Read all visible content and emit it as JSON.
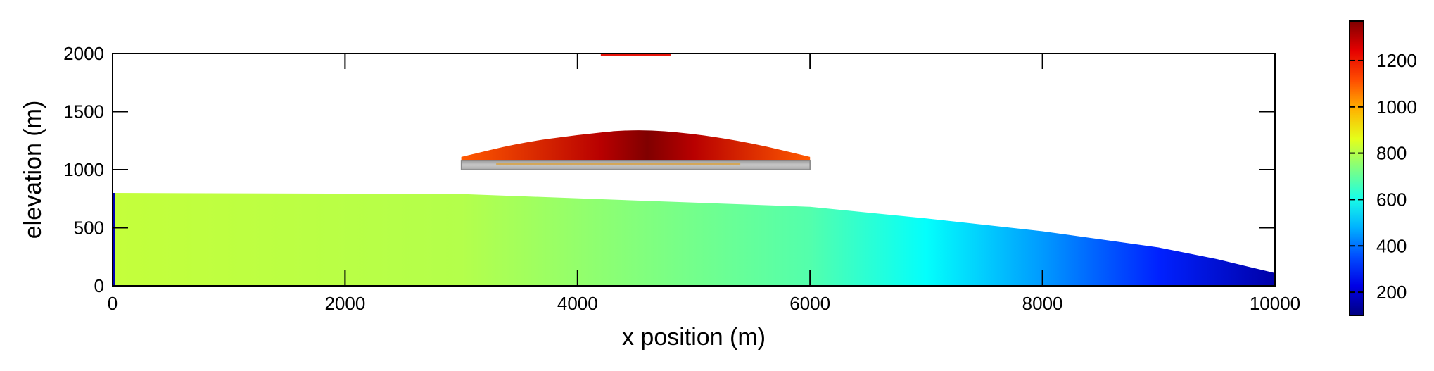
{
  "chart_data": {
    "type": "heatmap",
    "title": "",
    "xlabel": "x position (m)",
    "ylabel": "elevation (m)",
    "xlim": [
      0,
      10000
    ],
    "ylim": [
      0,
      2000
    ],
    "x_ticks": [
      0,
      2000,
      4000,
      6000,
      8000,
      10000
    ],
    "y_ticks": [
      0,
      500,
      1000,
      1500,
      2000
    ],
    "x_tick_labels": [
      "0",
      "2000",
      "4000",
      "6000",
      "8000",
      "10000"
    ],
    "y_tick_labels": [
      "0",
      "500",
      "1000",
      "1500",
      "2000"
    ],
    "grid": false,
    "colormap": "jet",
    "colorbar": {
      "range": [
        100,
        1370
      ],
      "ticks": [
        200,
        400,
        600,
        800,
        1000,
        1200
      ],
      "tick_labels": [
        "200",
        "400",
        "600",
        "800",
        "1000",
        "1200"
      ]
    },
    "regions": [
      {
        "region": "lower-body",
        "x_range": [
          0,
          10000
        ],
        "surface_x": [
          0,
          3000,
          6000,
          7000,
          8000,
          9000,
          9500,
          10000
        ],
        "surface_elevation": [
          800,
          790,
          680,
          580,
          470,
          330,
          230,
          110
        ],
        "value_x": [
          0,
          3000,
          6000,
          7000,
          8000,
          9000,
          10000
        ],
        "value": [
          820,
          800,
          680,
          580,
          450,
          300,
          150
        ]
      },
      {
        "region": "upper-lens",
        "x_range": [
          3000,
          6000
        ],
        "top_x": [
          3000,
          3500,
          4000,
          4500,
          5000,
          5500,
          6000
        ],
        "top_elevation": [
          1110,
          1230,
          1300,
          1350,
          1310,
          1230,
          1110
        ],
        "bottom_elevation": 1080,
        "value_x": [
          3000,
          4200,
          4600,
          5000,
          6000
        ],
        "value": [
          1100,
          1300,
          1370,
          1300,
          1100
        ]
      },
      {
        "region": "slab",
        "x_range": [
          3000,
          6000
        ],
        "elevation_range": [
          1000,
          1080
        ],
        "color": "#bbbbbb"
      },
      {
        "region": "top-strip",
        "x_range": [
          4200,
          4800
        ],
        "elevation_range": [
          1980,
          2000
        ],
        "color": "#e8140a"
      }
    ]
  }
}
